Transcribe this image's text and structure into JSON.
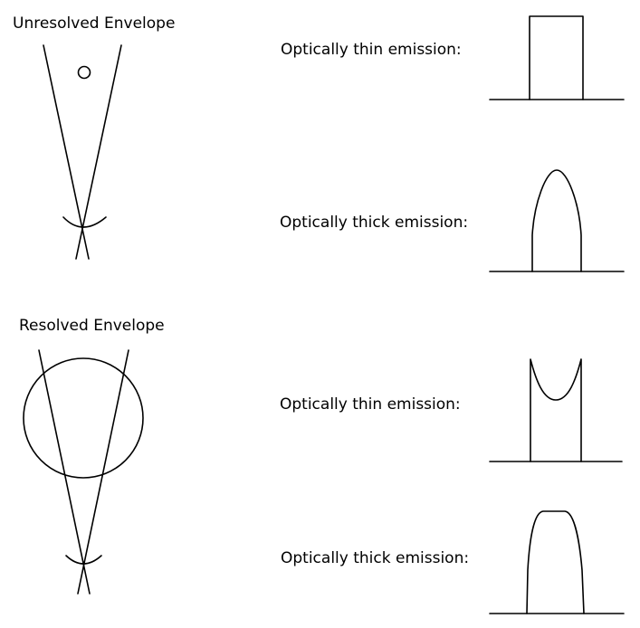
{
  "diagram": {
    "unresolved": {
      "title": "Unresolved Envelope",
      "thin_label": "Optically thin emission:",
      "thick_label": "Optically thick emission:"
    },
    "resolved": {
      "title": "Resolved Envelope",
      "thin_label": "Optically thin emission:",
      "thick_label": "Optically thick emission:"
    },
    "colors": {
      "line": "#000000",
      "background": "#ffffff"
    }
  }
}
